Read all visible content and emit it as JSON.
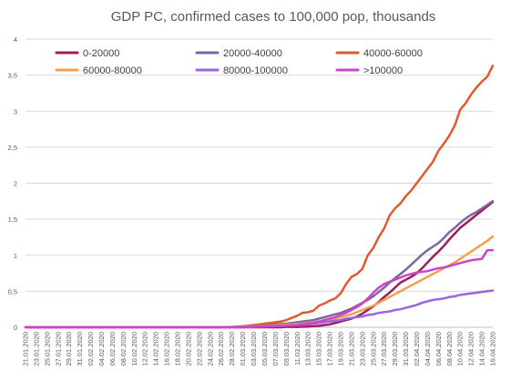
{
  "chart_data": {
    "type": "line",
    "title": "GDP PC, confirmed cases to 100,000 pop, thousands",
    "xlabel": "",
    "ylabel": "",
    "ylim": [
      0,
      4
    ],
    "yticks": [
      "0",
      "0,5",
      "1",
      "1,5",
      "2",
      "2,5",
      "3",
      "3,5",
      "4"
    ],
    "grid": true,
    "legend_position": "top",
    "x": [
      "21.01.2020",
      "22.01.2020",
      "23.01.2020",
      "24.01.2020",
      "25.01.2020",
      "26.01.2020",
      "27.01.2020",
      "28.01.2020",
      "29.01.2020",
      "30.01.2020",
      "31.01.2020",
      "01.02.2020",
      "02.02.2020",
      "03.02.2020",
      "04.02.2020",
      "05.02.2020",
      "06.02.2020",
      "07.02.2020",
      "08.02.2020",
      "09.02.2020",
      "10.02.2020",
      "11.02.2020",
      "12.02.2020",
      "13.02.2020",
      "14.02.2020",
      "15.02.2020",
      "16.02.2020",
      "17.02.2020",
      "18.02.2020",
      "19.02.2020",
      "20.02.2020",
      "21.02.2020",
      "22.02.2020",
      "23.02.2020",
      "24.02.2020",
      "25.02.2020",
      "26.02.2020",
      "27.02.2020",
      "28.02.2020",
      "29.02.2020",
      "01.03.2020",
      "02.03.2020",
      "03.03.2020",
      "04.03.2020",
      "05.03.2020",
      "06.03.2020",
      "07.03.2020",
      "08.03.2020",
      "09.03.2020",
      "10.03.2020",
      "11.03.2020",
      "12.03.2020",
      "13.03.2020",
      "14.03.2020",
      "15.03.2020",
      "16.03.2020",
      "17.03.2020",
      "18.03.2020",
      "19.03.2020",
      "20.03.2020",
      "21.03.2020",
      "22.03.2020",
      "23.03.2020",
      "24.03.2020",
      "25.03.2020",
      "26.03.2020",
      "27.03.2020",
      "28.03.2020",
      "29.03.2020",
      "30.03.2020",
      "31.03.2020",
      "01.04.2020",
      "02.04.2020",
      "03.04.2020",
      "04.04.2020",
      "05.04.2020",
      "06.04.2020",
      "07.04.2020",
      "08.04.2020",
      "09.04.2020",
      "10.04.2020",
      "11.04.2020",
      "12.04.2020",
      "13.04.2020",
      "14.04.2020",
      "15.04.2020",
      "16.04.2020"
    ],
    "xtick_labels": [
      "21.01.2020",
      "23.01.2020",
      "25.01.2020",
      "27.01.2020",
      "29.01.2020",
      "31.01.2020",
      "02.02.2020",
      "04.02.2020",
      "06.02.2020",
      "08.02.2020",
      "10.02.2020",
      "12.02.2020",
      "14.02.2020",
      "16.02.2020",
      "18.02.2020",
      "20.02.2020",
      "22.02.2020",
      "24.02.2020",
      "26.02.2020",
      "28.02.2020",
      "01.03.2020",
      "03.03.2020",
      "05.03.2020",
      "07.03.2020",
      "09.03.2020",
      "11.03.2020",
      "13.03.2020",
      "15.03.2020",
      "17.03.2020",
      "19.03.2020",
      "21.03.2020",
      "23.03.2020",
      "25.03.2020",
      "27.03.2020",
      "29.03.2020",
      "31.03.2020",
      "02.04.2020",
      "04.04.2020",
      "06.04.2020",
      "08.04.2020",
      "10.04.2020",
      "12.04.2020",
      "14.04.2020",
      "16.04.2020"
    ],
    "series": [
      {
        "name": "0-20000",
        "color": "#9e1b5c",
        "values": [
          0,
          0,
          0,
          0,
          0,
          0,
          0,
          0,
          0,
          0,
          0,
          0,
          0,
          0,
          0,
          0,
          0,
          0,
          0,
          0,
          0,
          0,
          0,
          0,
          0,
          0,
          0,
          0,
          0,
          0,
          0,
          0,
          0,
          0,
          0,
          0,
          0,
          0,
          0,
          0,
          0,
          0,
          0,
          0,
          0,
          0,
          0,
          0,
          0.005,
          0.005,
          0.005,
          0.008,
          0.01,
          0.015,
          0.02,
          0.03,
          0.04,
          0.06,
          0.08,
          0.1,
          0.12,
          0.15,
          0.19,
          0.24,
          0.29,
          0.35,
          0.42,
          0.48,
          0.55,
          0.62,
          0.66,
          0.7,
          0.75,
          0.82,
          0.9,
          0.98,
          1.05,
          1.13,
          1.22,
          1.3,
          1.38,
          1.44,
          1.5,
          1.56,
          1.62,
          1.68,
          1.74
        ]
      },
      {
        "name": "20000-40000",
        "color": "#8064a2",
        "values": [
          0,
          0,
          0,
          0,
          0,
          0,
          0,
          0,
          0,
          0,
          0,
          0,
          0,
          0,
          0,
          0,
          0,
          0,
          0,
          0,
          0,
          0,
          0,
          0,
          0,
          0,
          0,
          0,
          0,
          0,
          0,
          0,
          0,
          0,
          0,
          0,
          0,
          0,
          0.005,
          0.005,
          0.008,
          0.01,
          0.015,
          0.02,
          0.025,
          0.03,
          0.04,
          0.045,
          0.05,
          0.06,
          0.07,
          0.08,
          0.09,
          0.1,
          0.12,
          0.14,
          0.16,
          0.18,
          0.2,
          0.23,
          0.26,
          0.3,
          0.34,
          0.38,
          0.43,
          0.49,
          0.55,
          0.62,
          0.68,
          0.74,
          0.8,
          0.87,
          0.94,
          1.01,
          1.07,
          1.12,
          1.17,
          1.24,
          1.32,
          1.38,
          1.45,
          1.51,
          1.56,
          1.6,
          1.65,
          1.7,
          1.75
        ]
      },
      {
        "name": "40000-60000",
        "color": "#e05a2f",
        "values": [
          0,
          0,
          0,
          0,
          0,
          0,
          0,
          0,
          0,
          0,
          0,
          0,
          0,
          0,
          0,
          0,
          0,
          0,
          0,
          0,
          0,
          0,
          0,
          0,
          0,
          0,
          0,
          0,
          0,
          0,
          0,
          0,
          0,
          0,
          0,
          0,
          0,
          0,
          0.005,
          0.01,
          0.015,
          0.02,
          0.03,
          0.04,
          0.05,
          0.06,
          0.07,
          0.08,
          0.1,
          0.13,
          0.16,
          0.2,
          0.21,
          0.23,
          0.3,
          0.33,
          0.37,
          0.4,
          0.47,
          0.6,
          0.7,
          0.74,
          0.81,
          1.0,
          1.1,
          1.25,
          1.37,
          1.55,
          1.65,
          1.72,
          1.82,
          1.9,
          2.0,
          2.1,
          2.2,
          2.3,
          2.45,
          2.55,
          2.66,
          2.8,
          3.02,
          3.11,
          3.23,
          3.33,
          3.41,
          3.48,
          3.63
        ]
      },
      {
        "name": "60000-80000",
        "color": "#f0a04b",
        "values": [
          0,
          0,
          0,
          0,
          0,
          0,
          0,
          0,
          0,
          0,
          0,
          0,
          0,
          0,
          0,
          0,
          0,
          0,
          0,
          0,
          0,
          0,
          0,
          0,
          0,
          0,
          0,
          0,
          0,
          0,
          0,
          0,
          0,
          0,
          0,
          0,
          0,
          0,
          0,
          0.005,
          0.005,
          0.008,
          0.01,
          0.013,
          0.016,
          0.02,
          0.025,
          0.03,
          0.035,
          0.04,
          0.045,
          0.05,
          0.06,
          0.07,
          0.08,
          0.09,
          0.1,
          0.12,
          0.14,
          0.16,
          0.18,
          0.21,
          0.24,
          0.27,
          0.3,
          0.34,
          0.38,
          0.42,
          0.46,
          0.5,
          0.54,
          0.58,
          0.62,
          0.66,
          0.7,
          0.74,
          0.78,
          0.82,
          0.86,
          0.9,
          0.95,
          1.0,
          1.05,
          1.1,
          1.15,
          1.2,
          1.26
        ]
      },
      {
        "name": "80000-100000",
        "color": "#9966e0",
        "values": [
          0,
          0,
          0,
          0,
          0,
          0,
          0,
          0,
          0,
          0,
          0,
          0,
          0,
          0,
          0,
          0,
          0,
          0,
          0,
          0,
          0,
          0,
          0,
          0,
          0,
          0,
          0,
          0,
          0,
          0,
          0,
          0,
          0,
          0,
          0,
          0,
          0,
          0,
          0,
          0,
          0.005,
          0.005,
          0.008,
          0.01,
          0.012,
          0.014,
          0.016,
          0.018,
          0.02,
          0.025,
          0.03,
          0.035,
          0.04,
          0.05,
          0.06,
          0.07,
          0.08,
          0.09,
          0.1,
          0.12,
          0.13,
          0.14,
          0.15,
          0.17,
          0.18,
          0.2,
          0.21,
          0.22,
          0.24,
          0.25,
          0.27,
          0.29,
          0.31,
          0.34,
          0.36,
          0.38,
          0.39,
          0.4,
          0.42,
          0.43,
          0.45,
          0.46,
          0.47,
          0.48,
          0.49,
          0.5,
          0.51
        ]
      },
      {
        "name": ">100000",
        "color": "#cc44cc",
        "values": [
          0,
          0,
          0,
          0,
          0,
          0,
          0,
          0,
          0,
          0,
          0,
          0,
          0,
          0,
          0,
          0,
          0,
          0,
          0,
          0,
          0,
          0,
          0,
          0,
          0,
          0,
          0,
          0,
          0,
          0,
          0,
          0,
          0,
          0,
          0,
          0,
          0,
          0,
          0,
          0,
          0,
          0.005,
          0.006,
          0.008,
          0.01,
          0.012,
          0.015,
          0.018,
          0.02,
          0.025,
          0.03,
          0.04,
          0.05,
          0.06,
          0.08,
          0.1,
          0.12,
          0.14,
          0.17,
          0.2,
          0.24,
          0.28,
          0.33,
          0.4,
          0.48,
          0.55,
          0.6,
          0.63,
          0.66,
          0.69,
          0.72,
          0.74,
          0.76,
          0.77,
          0.78,
          0.8,
          0.82,
          0.83,
          0.85,
          0.87,
          0.89,
          0.91,
          0.93,
          0.94,
          0.95,
          1.07,
          1.07
        ]
      }
    ]
  }
}
